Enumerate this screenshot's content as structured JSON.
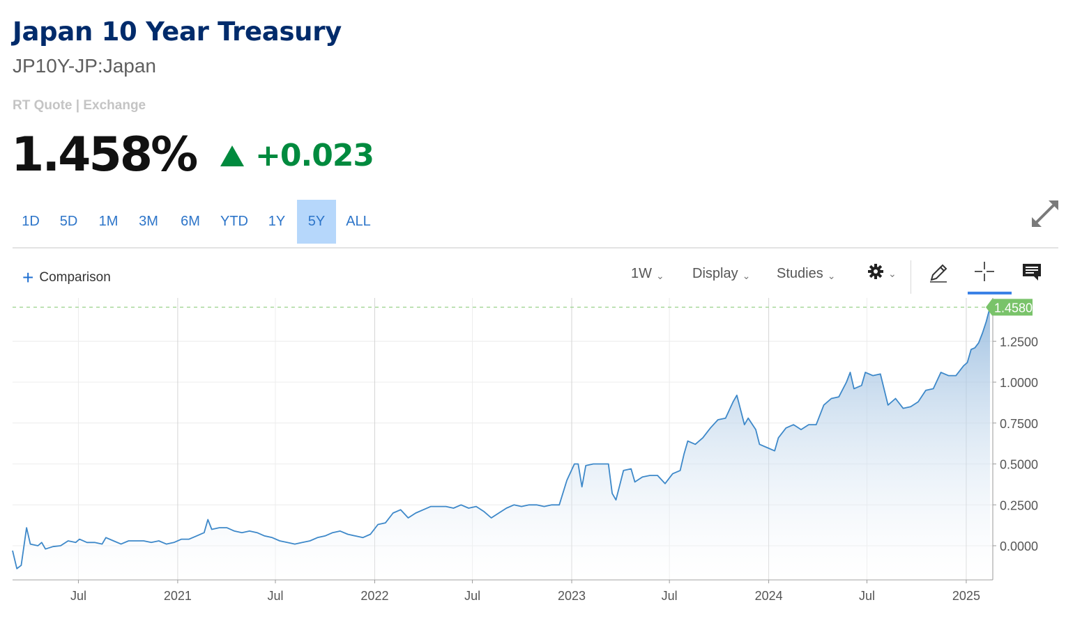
{
  "header": {
    "title": "Japan 10 Year Treasury",
    "symbol": "JP10Y-JP:Japan",
    "quote_source": "RT Quote | Exchange",
    "price": "1.458%",
    "change": "+0.023",
    "change_direction": "up",
    "up_color": "#008a3e"
  },
  "range_tabs": [
    {
      "label": "1D",
      "active": false
    },
    {
      "label": "5D",
      "active": false
    },
    {
      "label": "1M",
      "active": false
    },
    {
      "label": "3M",
      "active": false
    },
    {
      "label": "6M",
      "active": false
    },
    {
      "label": "YTD",
      "active": false
    },
    {
      "label": "1Y",
      "active": false
    },
    {
      "label": "5Y",
      "active": true
    },
    {
      "label": "ALL",
      "active": false
    }
  ],
  "toolbar": {
    "comparison_label": "Comparison",
    "interval_label": "1W",
    "display_label": "Display",
    "studies_label": "Studies",
    "icons": [
      "gear-icon",
      "pencil-icon",
      "crosshair-icon",
      "comment-icon",
      "expand-icon"
    ]
  },
  "chart_data": {
    "type": "area",
    "title": "",
    "xlabel": "",
    "ylabel": "",
    "y_ticks": [
      "1.2500",
      "1.0000",
      "0.7500",
      "0.5000",
      "0.2500",
      "0.0000"
    ],
    "x_ticks": [
      "Jul",
      "2021",
      "Jul",
      "2022",
      "Jul",
      "2023",
      "Jul",
      "2024",
      "Jul",
      "2025"
    ],
    "last_value_label": "1.4580",
    "ylim": [
      -0.2,
      1.55
    ],
    "xlim": [
      "2020-03-01",
      "2025-02-14"
    ],
    "grid": true,
    "line_color": "#3d88c9",
    "last_value_color": "#79c36a",
    "series": [
      {
        "values": [
          [
            "2020-03-01",
            -0.03
          ],
          [
            "2020-03-09",
            -0.14
          ],
          [
            "2020-03-17",
            -0.12
          ],
          [
            "2020-03-27",
            0.11
          ],
          [
            "2020-04-03",
            0.01
          ],
          [
            "2020-04-17",
            0.0
          ],
          [
            "2020-04-24",
            0.02
          ],
          [
            "2020-05-01",
            -0.02
          ],
          [
            "2020-05-15",
            -0.005
          ],
          [
            "2020-05-29",
            0.0
          ],
          [
            "2020-06-12",
            0.03
          ],
          [
            "2020-06-26",
            0.02
          ],
          [
            "2020-07-03",
            0.04
          ],
          [
            "2020-07-17",
            0.02
          ],
          [
            "2020-07-31",
            0.02
          ],
          [
            "2020-08-14",
            0.01
          ],
          [
            "2020-08-21",
            0.05
          ],
          [
            "2020-09-04",
            0.03
          ],
          [
            "2020-09-18",
            0.01
          ],
          [
            "2020-10-02",
            0.03
          ],
          [
            "2020-10-16",
            0.03
          ],
          [
            "2020-10-30",
            0.03
          ],
          [
            "2020-11-13",
            0.02
          ],
          [
            "2020-11-27",
            0.03
          ],
          [
            "2020-12-11",
            0.01
          ],
          [
            "2020-12-25",
            0.02
          ],
          [
            "2021-01-08",
            0.04
          ],
          [
            "2021-01-22",
            0.04
          ],
          [
            "2021-02-05",
            0.06
          ],
          [
            "2021-02-19",
            0.08
          ],
          [
            "2021-02-26",
            0.16
          ],
          [
            "2021-03-05",
            0.1
          ],
          [
            "2021-03-19",
            0.11
          ],
          [
            "2021-04-02",
            0.11
          ],
          [
            "2021-04-16",
            0.09
          ],
          [
            "2021-04-30",
            0.08
          ],
          [
            "2021-05-14",
            0.09
          ],
          [
            "2021-05-28",
            0.08
          ],
          [
            "2021-06-11",
            0.06
          ],
          [
            "2021-06-25",
            0.05
          ],
          [
            "2021-07-09",
            0.03
          ],
          [
            "2021-07-23",
            0.02
          ],
          [
            "2021-08-06",
            0.01
          ],
          [
            "2021-08-20",
            0.02
          ],
          [
            "2021-09-03",
            0.03
          ],
          [
            "2021-09-17",
            0.05
          ],
          [
            "2021-10-01",
            0.06
          ],
          [
            "2021-10-15",
            0.08
          ],
          [
            "2021-10-29",
            0.09
          ],
          [
            "2021-11-12",
            0.07
          ],
          [
            "2021-11-26",
            0.06
          ],
          [
            "2021-12-10",
            0.05
          ],
          [
            "2021-12-24",
            0.07
          ],
          [
            "2022-01-07",
            0.13
          ],
          [
            "2022-01-21",
            0.14
          ],
          [
            "2022-02-04",
            0.2
          ],
          [
            "2022-02-18",
            0.22
          ],
          [
            "2022-03-04",
            0.17
          ],
          [
            "2022-03-18",
            0.2
          ],
          [
            "2022-04-01",
            0.22
          ],
          [
            "2022-04-15",
            0.24
          ],
          [
            "2022-04-29",
            0.24
          ],
          [
            "2022-05-13",
            0.24
          ],
          [
            "2022-05-27",
            0.23
          ],
          [
            "2022-06-10",
            0.25
          ],
          [
            "2022-06-24",
            0.23
          ],
          [
            "2022-07-08",
            0.24
          ],
          [
            "2022-07-22",
            0.21
          ],
          [
            "2022-08-05",
            0.17
          ],
          [
            "2022-08-19",
            0.2
          ],
          [
            "2022-09-02",
            0.23
          ],
          [
            "2022-09-16",
            0.25
          ],
          [
            "2022-09-30",
            0.24
          ],
          [
            "2022-10-14",
            0.25
          ],
          [
            "2022-10-28",
            0.25
          ],
          [
            "2022-11-11",
            0.24
          ],
          [
            "2022-11-25",
            0.25
          ],
          [
            "2022-12-09",
            0.25
          ],
          [
            "2022-12-23",
            0.4
          ],
          [
            "2023-01-06",
            0.5
          ],
          [
            "2023-01-13",
            0.5
          ],
          [
            "2023-01-20",
            0.36
          ],
          [
            "2023-01-27",
            0.49
          ],
          [
            "2023-02-10",
            0.5
          ],
          [
            "2023-02-24",
            0.5
          ],
          [
            "2023-03-10",
            0.5
          ],
          [
            "2023-03-17",
            0.32
          ],
          [
            "2023-03-24",
            0.28
          ],
          [
            "2023-04-07",
            0.46
          ],
          [
            "2023-04-21",
            0.47
          ],
          [
            "2023-04-28",
            0.39
          ],
          [
            "2023-05-12",
            0.42
          ],
          [
            "2023-05-26",
            0.43
          ],
          [
            "2023-06-09",
            0.43
          ],
          [
            "2023-06-23",
            0.38
          ],
          [
            "2023-07-07",
            0.44
          ],
          [
            "2023-07-21",
            0.46
          ],
          [
            "2023-07-28",
            0.56
          ],
          [
            "2023-08-04",
            0.64
          ],
          [
            "2023-08-18",
            0.62
          ],
          [
            "2023-09-01",
            0.66
          ],
          [
            "2023-09-15",
            0.72
          ],
          [
            "2023-09-29",
            0.77
          ],
          [
            "2023-10-13",
            0.78
          ],
          [
            "2023-10-27",
            0.88
          ],
          [
            "2023-11-03",
            0.92
          ],
          [
            "2023-11-17",
            0.74
          ],
          [
            "2023-11-24",
            0.78
          ],
          [
            "2023-12-08",
            0.71
          ],
          [
            "2023-12-15",
            0.62
          ],
          [
            "2023-12-29",
            0.6
          ],
          [
            "2024-01-12",
            0.58
          ],
          [
            "2024-01-19",
            0.66
          ],
          [
            "2024-02-02",
            0.72
          ],
          [
            "2024-02-16",
            0.74
          ],
          [
            "2024-03-01",
            0.71
          ],
          [
            "2024-03-15",
            0.74
          ],
          [
            "2024-03-29",
            0.74
          ],
          [
            "2024-04-12",
            0.86
          ],
          [
            "2024-04-26",
            0.9
          ],
          [
            "2024-05-10",
            0.91
          ],
          [
            "2024-05-24",
            1.0
          ],
          [
            "2024-05-31",
            1.06
          ],
          [
            "2024-06-07",
            0.96
          ],
          [
            "2024-06-21",
            0.98
          ],
          [
            "2024-06-28",
            1.06
          ],
          [
            "2024-07-12",
            1.04
          ],
          [
            "2024-07-26",
            1.05
          ],
          [
            "2024-08-09",
            0.86
          ],
          [
            "2024-08-23",
            0.9
          ],
          [
            "2024-09-06",
            0.84
          ],
          [
            "2024-09-20",
            0.85
          ],
          [
            "2024-10-04",
            0.88
          ],
          [
            "2024-10-18",
            0.95
          ],
          [
            "2024-11-01",
            0.96
          ],
          [
            "2024-11-15",
            1.06
          ],
          [
            "2024-11-29",
            1.04
          ],
          [
            "2024-12-13",
            1.04
          ],
          [
            "2024-12-27",
            1.1
          ],
          [
            "2025-01-03",
            1.12
          ],
          [
            "2025-01-10",
            1.2
          ],
          [
            "2025-01-17",
            1.21
          ],
          [
            "2025-01-24",
            1.24
          ],
          [
            "2025-01-31",
            1.3
          ],
          [
            "2025-02-07",
            1.37
          ],
          [
            "2025-02-14",
            1.458
          ]
        ]
      }
    ]
  }
}
